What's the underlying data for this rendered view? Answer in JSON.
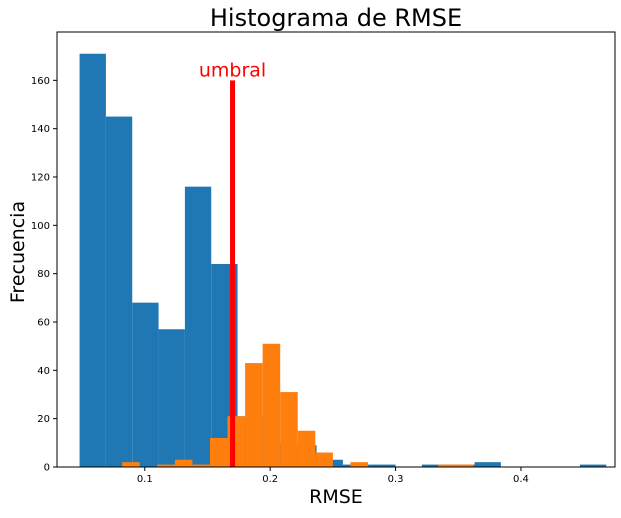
{
  "chart_data": {
    "type": "bar",
    "title": "Histograma de RMSE",
    "xlabel": "RMSE",
    "ylabel": "Frecuencia",
    "xlim": [
      0.03,
      0.475
    ],
    "ylim": [
      0,
      180
    ],
    "xticks": [
      0.1,
      0.2,
      0.3,
      0.4
    ],
    "xtick_labels": [
      "0.1",
      "0.2",
      "0.3",
      "0.4"
    ],
    "yticks": [
      0,
      20,
      40,
      60,
      80,
      100,
      120,
      140,
      160
    ],
    "ytick_labels": [
      "0",
      "20",
      "40",
      "60",
      "80",
      "100",
      "120",
      "140",
      "160"
    ],
    "series": [
      {
        "color": "#1f77b4",
        "bins": [
          {
            "x0": 0.048,
            "x1": 0.069,
            "count": 171
          },
          {
            "x0": 0.069,
            "x1": 0.09,
            "count": 145
          },
          {
            "x0": 0.09,
            "x1": 0.111,
            "count": 68
          },
          {
            "x0": 0.111,
            "x1": 0.132,
            "count": 57
          },
          {
            "x0": 0.132,
            "x1": 0.153,
            "count": 116
          },
          {
            "x0": 0.153,
            "x1": 0.174,
            "count": 84
          },
          {
            "x0": 0.174,
            "x1": 0.195,
            "count": 21
          },
          {
            "x0": 0.195,
            "x1": 0.216,
            "count": 10
          },
          {
            "x0": 0.216,
            "x1": 0.237,
            "count": 9
          },
          {
            "x0": 0.237,
            "x1": 0.258,
            "count": 3
          },
          {
            "x0": 0.258,
            "x1": 0.279,
            "count": 1
          },
          {
            "x0": 0.279,
            "x1": 0.3,
            "count": 1
          },
          {
            "x0": 0.321,
            "x1": 0.342,
            "count": 1
          },
          {
            "x0": 0.342,
            "x1": 0.363,
            "count": 1
          },
          {
            "x0": 0.363,
            "x1": 0.384,
            "count": 2
          },
          {
            "x0": 0.447,
            "x1": 0.468,
            "count": 1
          }
        ]
      },
      {
        "color": "#ff7f0e",
        "bins": [
          {
            "x0": 0.082,
            "x1": 0.096,
            "count": 2
          },
          {
            "x0": 0.11,
            "x1": 0.124,
            "count": 1
          },
          {
            "x0": 0.124,
            "x1": 0.138,
            "count": 3
          },
          {
            "x0": 0.138,
            "x1": 0.152,
            "count": 1
          },
          {
            "x0": 0.152,
            "x1": 0.166,
            "count": 12
          },
          {
            "x0": 0.166,
            "x1": 0.18,
            "count": 21
          },
          {
            "x0": 0.18,
            "x1": 0.194,
            "count": 43
          },
          {
            "x0": 0.194,
            "x1": 0.208,
            "count": 51
          },
          {
            "x0": 0.208,
            "x1": 0.222,
            "count": 31
          },
          {
            "x0": 0.222,
            "x1": 0.236,
            "count": 15
          },
          {
            "x0": 0.236,
            "x1": 0.25,
            "count": 6
          },
          {
            "x0": 0.264,
            "x1": 0.278,
            "count": 2
          },
          {
            "x0": 0.334,
            "x1": 0.362,
            "count": 1
          }
        ]
      }
    ],
    "threshold": {
      "x": 0.17,
      "y_top": 160,
      "label": "umbral",
      "color": "#ff0000"
    },
    "grid": false,
    "legend": "none"
  }
}
